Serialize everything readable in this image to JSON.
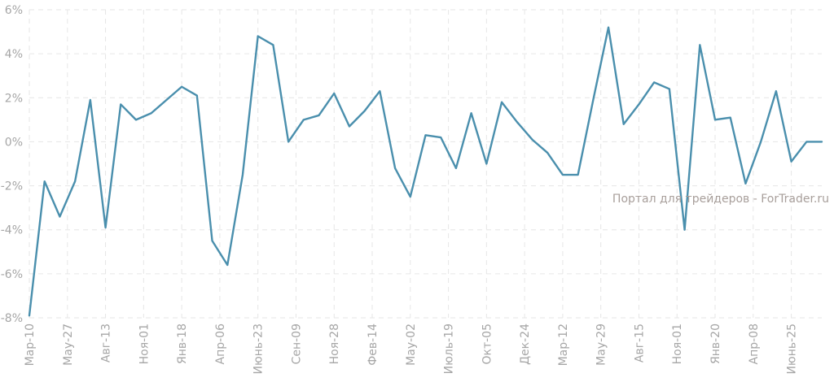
{
  "chart_data": {
    "type": "line",
    "title": "",
    "xlabel": "",
    "ylabel": "",
    "ylim": [
      -8,
      6
    ],
    "grid": true,
    "y_ticks": [
      {
        "value": 6,
        "label": "6%"
      },
      {
        "value": 4,
        "label": "4%"
      },
      {
        "value": 2,
        "label": "2%"
      },
      {
        "value": 0,
        "label": "0%"
      },
      {
        "value": -2,
        "label": "-2%"
      },
      {
        "value": -4,
        "label": "-4%"
      },
      {
        "value": -6,
        "label": "-6%"
      },
      {
        "value": -8,
        "label": "-8%"
      }
    ],
    "x_tick_labels": [
      "Мар-10",
      "Мау-27",
      "Авг-13",
      "Ноя-01",
      "Янв-18",
      "Апр-06",
      "Июнь-23",
      "Сен-09",
      "Ноя-28",
      "Фев-14",
      "Мау-02",
      "Июль-19",
      "Окт-05",
      "Дек-24",
      "Мар-12",
      "Мау-29",
      "Авг-15",
      "Ноя-01",
      "Янв-20",
      "Апр-08",
      "Июнь-25"
    ],
    "x_tick_every": 2.5,
    "series": [
      {
        "values": [
          -7.9,
          -1.8,
          -3.4,
          -1.8,
          1.9,
          -3.9,
          1.7,
          1.0,
          1.3,
          1.9,
          2.5,
          2.1,
          -4.5,
          -5.6,
          -1.5,
          4.8,
          4.4,
          0.0,
          1.0,
          1.2,
          2.2,
          0.7,
          1.4,
          2.3,
          -1.2,
          -2.5,
          0.3,
          0.2,
          -1.2,
          1.3,
          -1.0,
          1.8,
          0.9,
          0.1,
          -0.5,
          -1.5,
          -1.5,
          1.9,
          5.2,
          0.8,
          1.7,
          2.7,
          2.4,
          -4.0,
          4.4,
          1.0,
          1.1,
          -1.9,
          0.0,
          2.3,
          -0.9,
          0.0,
          0.0
        ],
        "color": "#4a8fad"
      }
    ],
    "watermark": "Портал для трейдеров - ForTrader.ru"
  }
}
